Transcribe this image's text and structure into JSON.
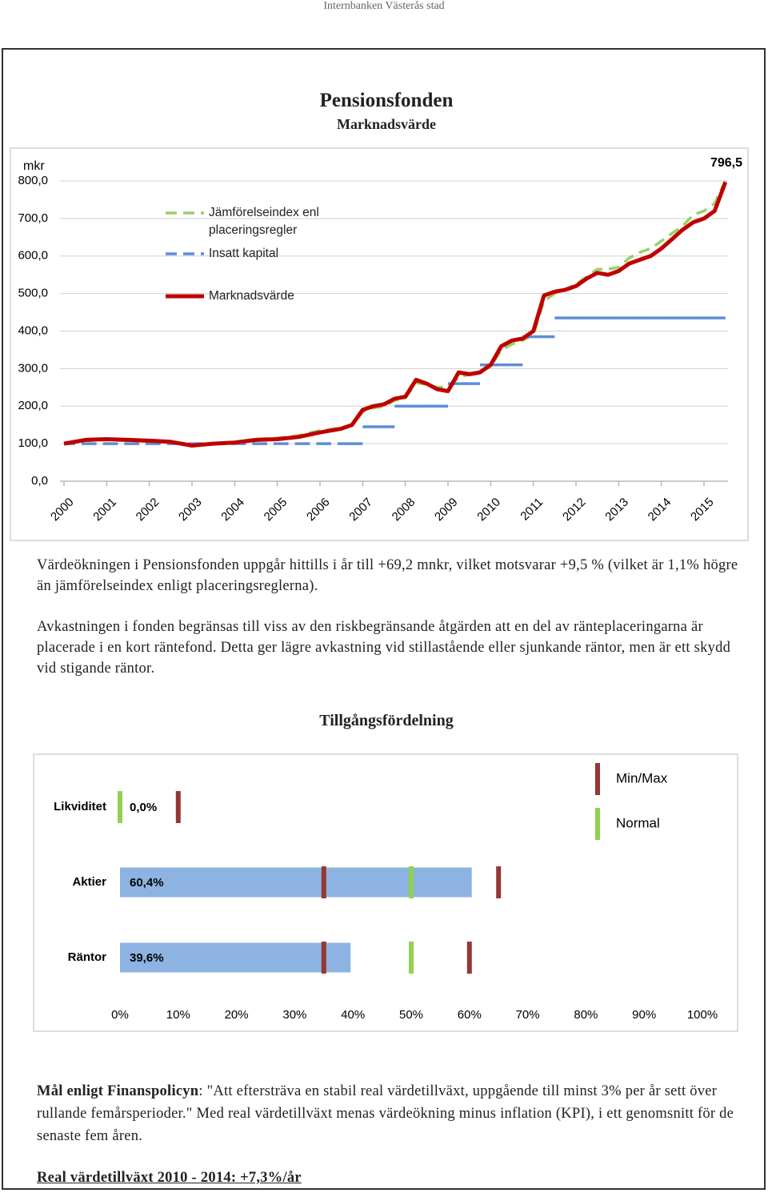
{
  "header": {
    "text": "Internbanken Västerås stad"
  },
  "chart_data": [
    {
      "type": "line",
      "title": "Pensionsfonden",
      "subtitle": "Marknadsvärde",
      "y_label": "mkr",
      "annotation": "796,5",
      "x": [
        2000,
        2000.5,
        2001,
        2001.5,
        2002,
        2002.5,
        2003,
        2003.5,
        2004,
        2004.5,
        2005,
        2005.5,
        2006,
        2006.5,
        2006.75,
        2007,
        2007.25,
        2007.5,
        2007.75,
        2008,
        2008.25,
        2008.5,
        2008.75,
        2009,
        2009.25,
        2009.5,
        2009.75,
        2010,
        2010.25,
        2010.5,
        2010.75,
        2011,
        2011.25,
        2011.5,
        2011.75,
        2012,
        2012.25,
        2012.5,
        2012.75,
        2013,
        2013.25,
        2013.5,
        2013.75,
        2014,
        2014.25,
        2014.5,
        2014.75,
        2015,
        2015.25,
        2015.5
      ],
      "xlim": [
        2000,
        2015.6
      ],
      "xticks": [
        2000,
        2001,
        2002,
        2003,
        2004,
        2005,
        2006,
        2007,
        2008,
        2009,
        2010,
        2011,
        2012,
        2013,
        2014,
        2015
      ],
      "ylim": [
        0,
        800
      ],
      "yticks": [
        {
          "value": 0,
          "label": "0,0"
        },
        {
          "value": 100,
          "label": "100,0"
        },
        {
          "value": 200,
          "label": "200,0"
        },
        {
          "value": 300,
          "label": "300,0"
        },
        {
          "value": 400,
          "label": "400,0"
        },
        {
          "value": 500,
          "label": "500,0"
        },
        {
          "value": 600,
          "label": "600,0"
        },
        {
          "value": 700,
          "label": "700,0"
        },
        {
          "value": 800,
          "label": "800,0"
        }
      ],
      "grid": true,
      "legend": "upper left",
      "series": [
        {
          "name": "Jämförelseindex enl placeringsregler",
          "color": "#9bcf6a",
          "dash": true,
          "values": [
            100,
            108,
            110,
            108,
            106,
            104,
            96,
            100,
            104,
            112,
            115,
            122,
            135,
            142,
            148,
            185,
            195,
            200,
            215,
            222,
            262,
            258,
            250,
            252,
            275,
            285,
            292,
            305,
            350,
            365,
            375,
            390,
            480,
            500,
            510,
            525,
            545,
            565,
            565,
            570,
            595,
            610,
            620,
            640,
            660,
            680,
            710,
            720,
            740,
            800
          ]
        },
        {
          "name": "Insatt kapital",
          "color": "#5b8ed6",
          "dash": true,
          "step": true,
          "values": [
            100,
            100,
            100,
            100,
            100,
            100,
            100,
            100,
            100,
            100,
            100,
            100,
            100,
            100,
            100,
            145,
            145,
            145,
            200,
            200,
            200,
            200,
            200,
            260,
            260,
            260,
            310,
            310,
            310,
            310,
            385,
            385,
            385,
            435,
            435,
            435,
            435,
            435,
            435,
            435,
            435,
            435,
            435,
            435,
            435,
            435,
            435,
            435,
            435,
            435
          ]
        },
        {
          "name": "Marknadsvärde",
          "color": "#c00000",
          "dash": false,
          "values": [
            100,
            110,
            112,
            110,
            108,
            105,
            95,
            100,
            103,
            110,
            112,
            118,
            130,
            140,
            150,
            190,
            200,
            205,
            220,
            225,
            270,
            260,
            245,
            240,
            290,
            285,
            290,
            310,
            360,
            375,
            380,
            400,
            495,
            505,
            510,
            520,
            540,
            555,
            550,
            560,
            580,
            590,
            600,
            620,
            645,
            670,
            690,
            700,
            720,
            796.5
          ]
        }
      ]
    },
    {
      "type": "bar",
      "orientation": "horizontal",
      "title": "Tillgångsfördelning",
      "categories": [
        "Likviditet",
        "Aktier",
        "Räntor"
      ],
      "values": [
        0,
        60.4,
        39.6
      ],
      "value_labels": [
        "0,0%",
        "60,4%",
        "39,6%"
      ],
      "color": "#8db3e2",
      "xlim": [
        0,
        100
      ],
      "xticks": [
        {
          "value": 0,
          "label": "0%"
        },
        {
          "value": 10,
          "label": "10%"
        },
        {
          "value": 20,
          "label": "20%"
        },
        {
          "value": 30,
          "label": "30%"
        },
        {
          "value": 40,
          "label": "40%"
        },
        {
          "value": 50,
          "label": "50%"
        },
        {
          "value": 60,
          "label": "60%"
        },
        {
          "value": 70,
          "label": "70%"
        },
        {
          "value": 80,
          "label": "80%"
        },
        {
          "value": 90,
          "label": "90%"
        },
        {
          "value": 100,
          "label": "100%"
        }
      ],
      "markers": [
        {
          "name": "Min/Max",
          "color": "#953735",
          "min": [
            0,
            35,
            35
          ],
          "max": [
            10,
            65,
            60
          ]
        },
        {
          "name": "Normal",
          "color": "#92d050",
          "values": [
            0,
            50,
            50
          ]
        }
      ]
    }
  ],
  "paragraphs": [
    "Värdeökningen i Pensionsfonden uppgår hittills i år till +69,2 mnkr, vilket motsvarar +9,5 % (vilket är 1,1% högre än jämförelseindex enligt placeringsreglerna).",
    "Avkastningen i fonden begränsas till viss av den riskbegränsande åtgärden att en del av ränteplaceringarna är placerade i en kort räntefond. Detta ger lägre avkastning vid stillastående eller sjunkande räntor, men är ett skydd vid stigande räntor."
  ],
  "goal": {
    "label": "Mål enligt Finanspolicyn",
    "text": ": \"Att eftersträva en stabil real värdetillväxt, uppgående till minst 3% per år sett över rullande femårsperioder.\" Med real värdetillväxt menas värdeökning minus inflation (KPI), i ett genomsnitt för de senaste fem åren."
  },
  "result": "Real värdetillväxt 2010 - 2014: +7,3%/år"
}
